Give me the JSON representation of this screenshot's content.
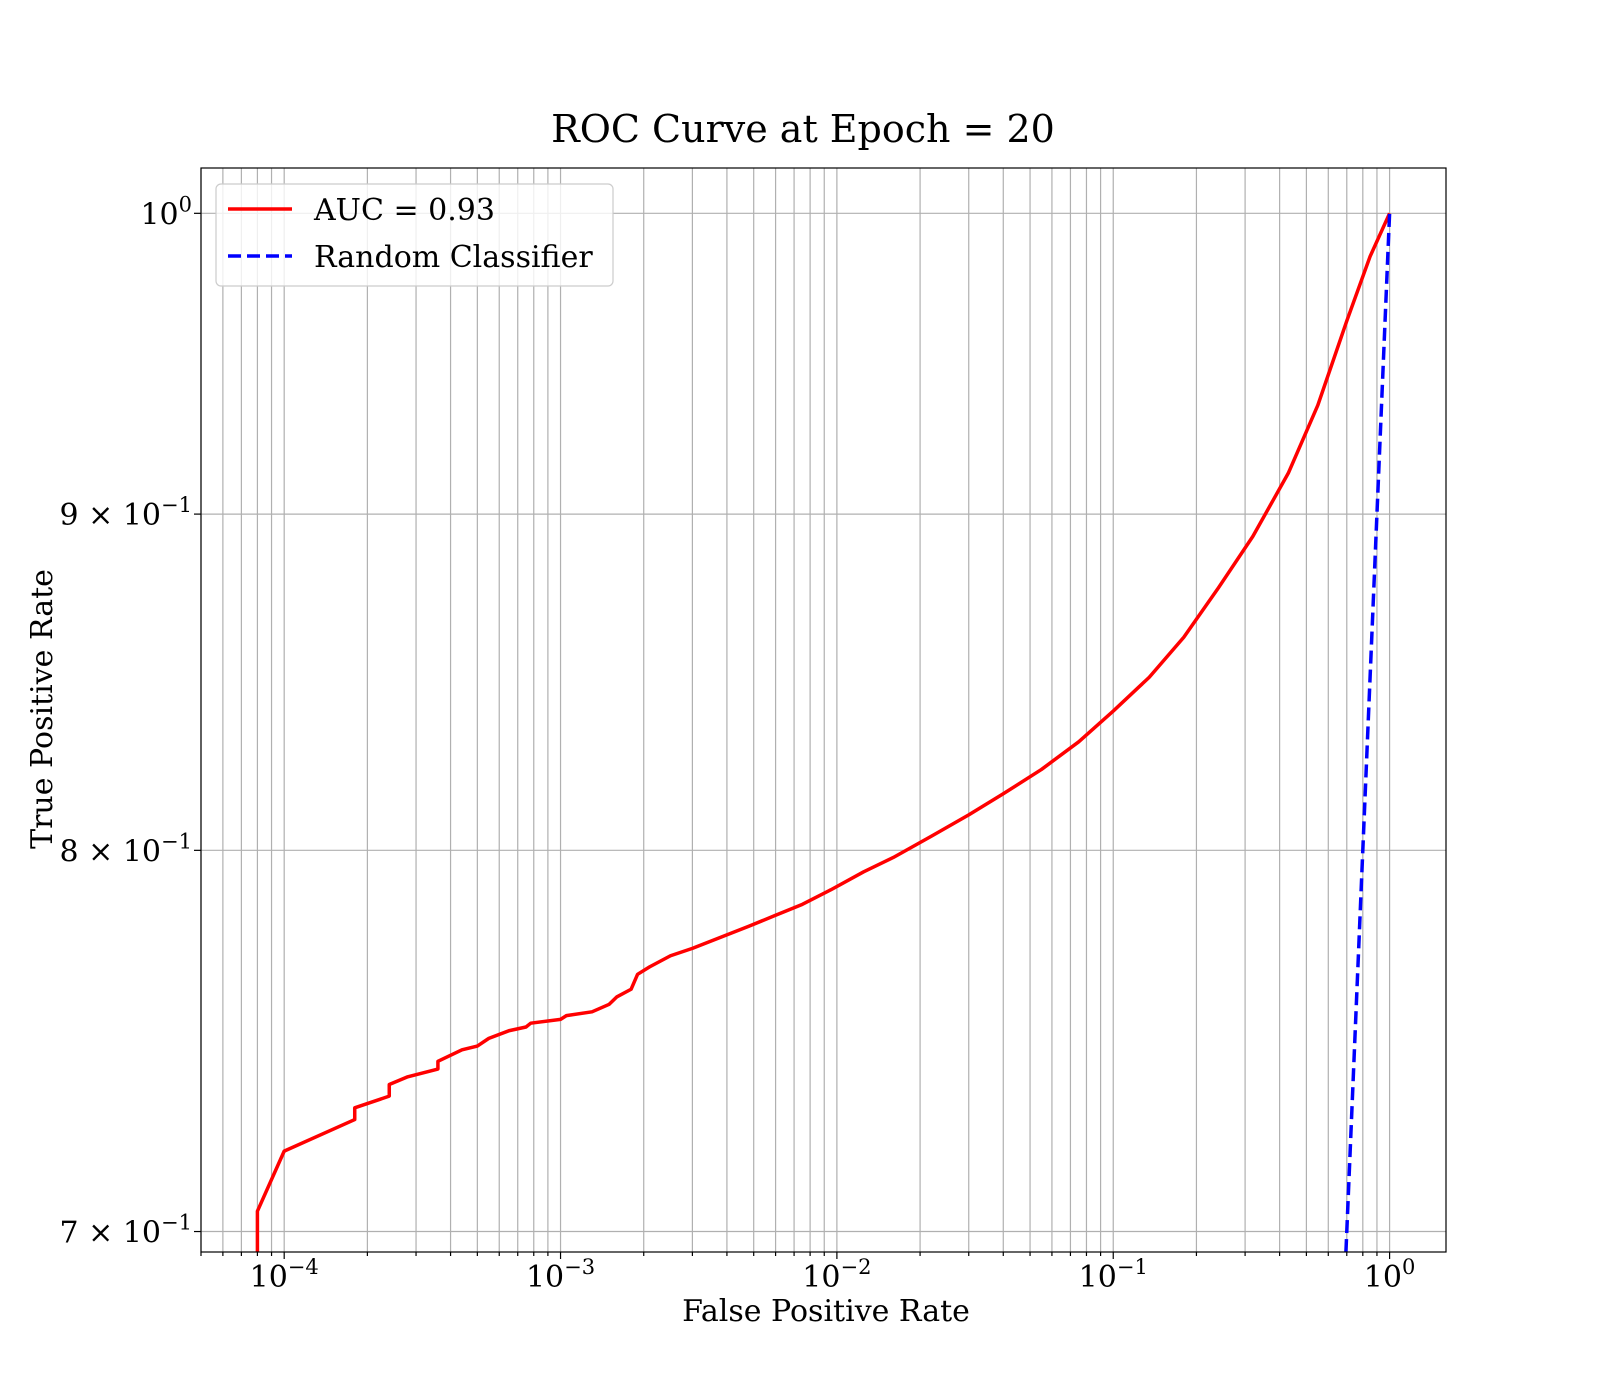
{
  "chart_data": {
    "type": "line",
    "title": "ROC Curve at Epoch = 20",
    "xlabel": "False Positive Rate",
    "ylabel": "True Positive Rate",
    "xscale": "log",
    "yscale": "log",
    "xlim": [
      5e-05,
      1.6
    ],
    "ylim": [
      0.695,
      1.016
    ],
    "grid": "both",
    "legend_placement": "top-left",
    "x_ticks": [
      {
        "value": 0.0001,
        "base": "10",
        "exp": "−4"
      },
      {
        "value": 0.001,
        "base": "10",
        "exp": "−3"
      },
      {
        "value": 0.01,
        "base": "10",
        "exp": "−2"
      },
      {
        "value": 0.1,
        "base": "10",
        "exp": "−1"
      },
      {
        "value": 1,
        "base": "10",
        "exp": "0"
      }
    ],
    "y_ticks": [
      {
        "value": 1.0,
        "base": "10",
        "exp": "0"
      },
      {
        "value": 0.9,
        "base": "9 × 10",
        "exp": "−1"
      },
      {
        "value": 0.8,
        "base": "8 × 10",
        "exp": "−1"
      },
      {
        "value": 0.7,
        "base": "7 × 10",
        "exp": "−1"
      }
    ],
    "series": [
      {
        "name": "AUC = 0.93",
        "color": "#ff0000",
        "style": "solid",
        "points": [
          [
            8e-05,
            0.695
          ],
          [
            8e-05,
            0.705
          ],
          [
            0.0001,
            0.72
          ],
          [
            0.00018,
            0.728
          ],
          [
            0.00018,
            0.731
          ],
          [
            0.00024,
            0.734
          ],
          [
            0.00024,
            0.737
          ],
          [
            0.00028,
            0.739
          ],
          [
            0.00036,
            0.741
          ],
          [
            0.00036,
            0.743
          ],
          [
            0.00044,
            0.746
          ],
          [
            0.0005,
            0.747
          ],
          [
            0.00055,
            0.749
          ],
          [
            0.00065,
            0.751
          ],
          [
            0.00075,
            0.752
          ],
          [
            0.00078,
            0.753
          ],
          [
            0.001,
            0.754
          ],
          [
            0.00105,
            0.755
          ],
          [
            0.0013,
            0.756
          ],
          [
            0.0015,
            0.758
          ],
          [
            0.0016,
            0.76
          ],
          [
            0.0018,
            0.762
          ],
          [
            0.0019,
            0.766
          ],
          [
            0.0021,
            0.768
          ],
          [
            0.0025,
            0.771
          ],
          [
            0.003,
            0.773
          ],
          [
            0.0038,
            0.776
          ],
          [
            0.0048,
            0.779
          ],
          [
            0.006,
            0.782
          ],
          [
            0.0075,
            0.785
          ],
          [
            0.0095,
            0.789
          ],
          [
            0.0125,
            0.794
          ],
          [
            0.016,
            0.798
          ],
          [
            0.022,
            0.804
          ],
          [
            0.03,
            0.81
          ],
          [
            0.04,
            0.816
          ],
          [
            0.055,
            0.823
          ],
          [
            0.075,
            0.831
          ],
          [
            0.1,
            0.84
          ],
          [
            0.135,
            0.85
          ],
          [
            0.18,
            0.862
          ],
          [
            0.24,
            0.877
          ],
          [
            0.32,
            0.893
          ],
          [
            0.43,
            0.913
          ],
          [
            0.55,
            0.935
          ],
          [
            0.7,
            0.963
          ],
          [
            0.85,
            0.985
          ],
          [
            1.0,
            1.0
          ]
        ]
      },
      {
        "name": "Random Classifier",
        "color": "#0000ff",
        "style": "dashed",
        "points": [
          [
            0.695,
            0.695
          ],
          [
            1.0,
            1.0
          ]
        ]
      }
    ]
  }
}
